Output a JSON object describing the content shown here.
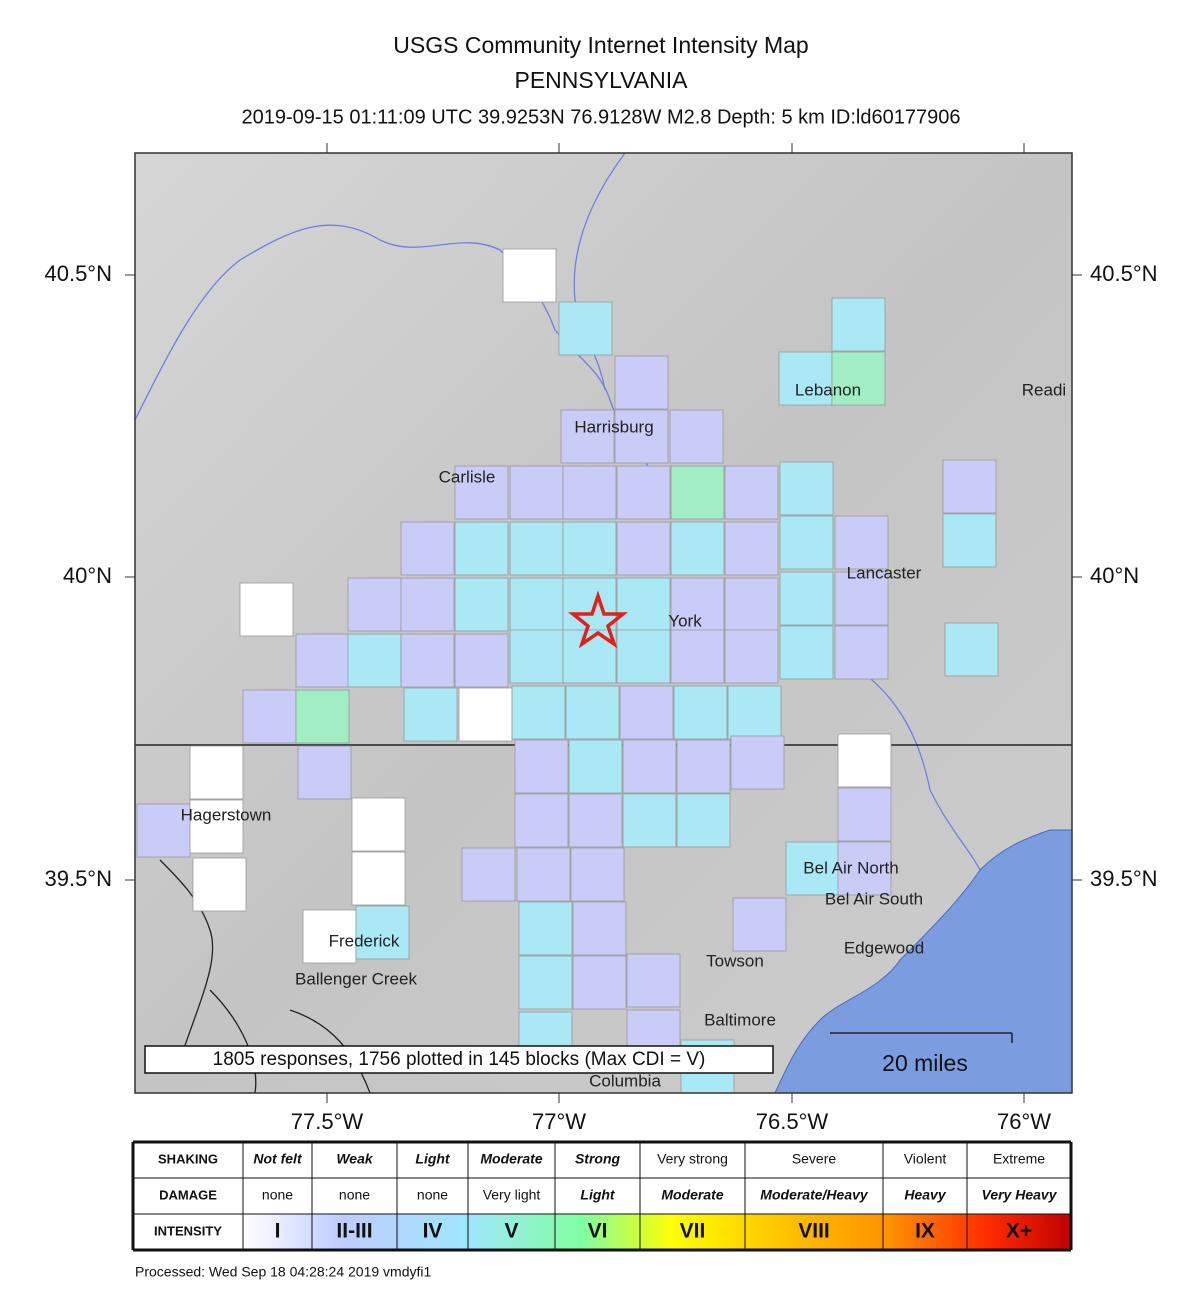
{
  "title": "USGS Community Internet Intensity Map",
  "region": "PENNSYLVANIA",
  "event_info": "2019-09-15 01:11:09 UTC 39.9253N 76.9128W M2.8 Depth: 5 km ID:ld60177906",
  "map": {
    "lat_labels": [
      "40.5°N",
      "40°N",
      "39.5°N"
    ],
    "lon_labels": [
      "77.5°W",
      "77°W",
      "76.5°W",
      "76°W"
    ],
    "places": [
      "Harrisburg",
      "Carlisle",
      "Lebanon",
      "Readi",
      "Lancaster",
      "York",
      "Hagerstown",
      "Frederick",
      "Ballenger Creek",
      "Bel Air North",
      "Bel Air South",
      "Edgewood",
      "Towson",
      "Baltimore",
      "Columbia"
    ],
    "note": "1805 responses, 1756 plotted in 145 blocks (Max CDI = V)",
    "scale_bar": "20 miles"
  },
  "legend": {
    "row_headers": [
      "SHAKING",
      "DAMAGE",
      "INTENSITY"
    ],
    "shaking": [
      "Not felt",
      "Weak",
      "Light",
      "Moderate",
      "Strong",
      "Very strong",
      "Severe",
      "Violent",
      "Extreme"
    ],
    "damage": [
      "none",
      "none",
      "none",
      "Very light",
      "Light",
      "Moderate",
      "Moderate/Heavy",
      "Heavy",
      "Very Heavy"
    ],
    "intensity": [
      "I",
      "II-III",
      "IV",
      "V",
      "VI",
      "VII",
      "VIII",
      "IX",
      "X+"
    ]
  },
  "footer": "Processed: Wed Sep 18 04:28:24 2019 vmdyfi1"
}
